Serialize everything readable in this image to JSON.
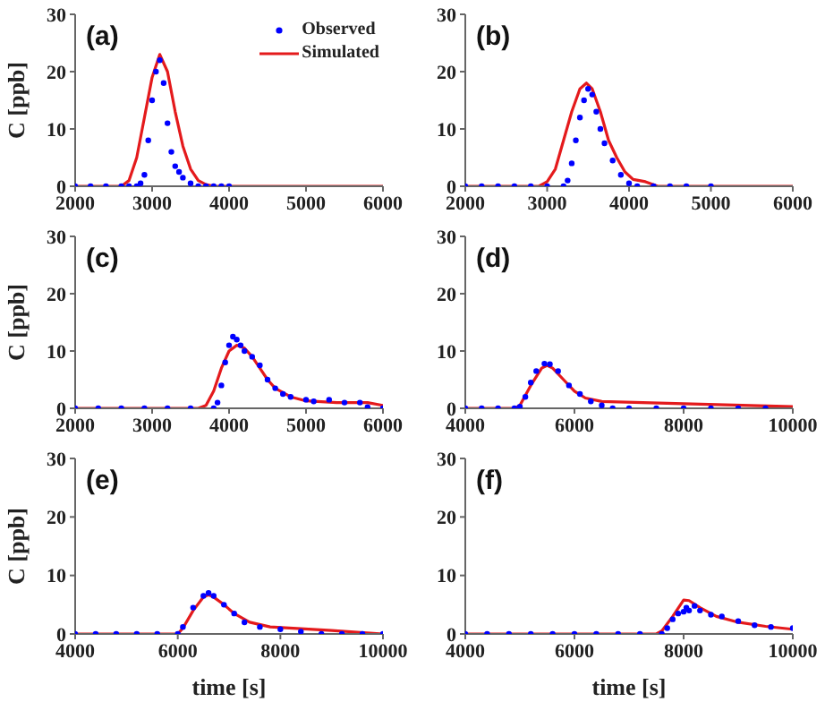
{
  "chart_data": [
    {
      "type": "line",
      "ylabel": "C [ppb]",
      "annotations": [
        "(a)"
      ],
      "xlim": [
        2000,
        6000
      ],
      "xticks": [
        2000,
        3000,
        4000,
        5000,
        6000
      ],
      "ylim": [
        0,
        30
      ],
      "yticks": [
        0,
        10,
        20,
        30
      ],
      "legend": "top right",
      "series": [
        {
          "name": "Observed",
          "type": "scatter",
          "marker": "circle",
          "color": "#0000ff",
          "x": [
            2000,
            2200,
            2400,
            2600,
            2700,
            2800,
            2850,
            2900,
            2950,
            3000,
            3050,
            3100,
            3150,
            3200,
            3250,
            3300,
            3350,
            3400,
            3500,
            3600,
            3700,
            3800,
            3900,
            4000
          ],
          "values": [
            0,
            0,
            0,
            0,
            0,
            0,
            0.5,
            2,
            8,
            15,
            20,
            22,
            18,
            11,
            6,
            3.5,
            2.5,
            1.5,
            0.5,
            0,
            0,
            0,
            0,
            0
          ]
        },
        {
          "name": "Simulated",
          "color": "#e41a1c",
          "x": [
            2000,
            2600,
            2700,
            2800,
            2900,
            3000,
            3100,
            3200,
            3300,
            3400,
            3500,
            3600,
            3700,
            3800,
            6000
          ],
          "values": [
            0,
            0,
            1,
            5,
            12,
            19,
            23,
            20,
            13,
            7,
            3,
            1,
            0.3,
            0,
            0
          ]
        }
      ]
    },
    {
      "type": "line",
      "annotations": [
        "(b)"
      ],
      "xlim": [
        2000,
        6000
      ],
      "xticks": [
        2000,
        3000,
        4000,
        5000,
        6000
      ],
      "ylim": [
        0,
        30
      ],
      "yticks": [
        0,
        10,
        20,
        30
      ],
      "series": [
        {
          "type": "scatter",
          "marker": "circle",
          "color": "#0000ff",
          "x": [
            2000,
            2200,
            2400,
            2600,
            2800,
            3000,
            3200,
            3250,
            3300,
            3350,
            3400,
            3450,
            3500,
            3550,
            3600,
            3650,
            3700,
            3800,
            3900,
            4000,
            4100,
            4300,
            4500,
            4700,
            5000
          ],
          "values": [
            0,
            0,
            0,
            0,
            0,
            0,
            0,
            1,
            4,
            8,
            12,
            15,
            17,
            16,
            13,
            10,
            7.5,
            4.5,
            2,
            0.5,
            0,
            0,
            0,
            0,
            0
          ]
        },
        {
          "color": "#e41a1c",
          "x": [
            2000,
            2900,
            3000,
            3100,
            3200,
            3300,
            3400,
            3480,
            3550,
            3650,
            3750,
            3850,
            3950,
            4050,
            4200,
            4350,
            6000
          ],
          "values": [
            0,
            0,
            0.8,
            3,
            8,
            13,
            17,
            18,
            17,
            13,
            8,
            5,
            2.5,
            1.2,
            0.8,
            0,
            0
          ]
        }
      ]
    },
    {
      "type": "line",
      "ylabel": "C [ppb]",
      "annotations": [
        "(c)"
      ],
      "xlim": [
        2000,
        6000
      ],
      "xticks": [
        2000,
        3000,
        4000,
        5000,
        6000
      ],
      "ylim": [
        0,
        30
      ],
      "yticks": [
        0,
        10,
        20,
        30
      ],
      "series": [
        {
          "type": "scatter",
          "marker": "circle",
          "color": "#0000ff",
          "x": [
            2000,
            2300,
            2600,
            2900,
            3200,
            3500,
            3800,
            3850,
            3900,
            3950,
            4000,
            4050,
            4100,
            4150,
            4200,
            4300,
            4400,
            4500,
            4600,
            4700,
            4800,
            5000,
            5100,
            5300,
            5500,
            5700,
            5800,
            6000
          ],
          "values": [
            0,
            0,
            0,
            0,
            0,
            0,
            0,
            1,
            4,
            8,
            11,
            12.5,
            12,
            11,
            10,
            9,
            7.5,
            5,
            3.5,
            2.5,
            2,
            1.5,
            1.2,
            1.5,
            1,
            1,
            0.2,
            0
          ]
        },
        {
          "color": "#e41a1c",
          "x": [
            2000,
            3600,
            3700,
            3800,
            3900,
            4000,
            4100,
            4200,
            4300,
            4400,
            4500,
            4600,
            4800,
            5000,
            5400,
            5800,
            6000
          ],
          "values": [
            0,
            0,
            0.5,
            3,
            7,
            10,
            11,
            10.5,
            9,
            7,
            5,
            3.5,
            2,
            1.3,
            1,
            1,
            0.5
          ]
        }
      ]
    },
    {
      "type": "line",
      "annotations": [
        "(d)"
      ],
      "xlim": [
        4000,
        10000
      ],
      "xticks": [
        4000,
        6000,
        8000,
        10000
      ],
      "ylim": [
        0,
        30
      ],
      "yticks": [
        0,
        10,
        20,
        30
      ],
      "series": [
        {
          "type": "scatter",
          "marker": "circle",
          "color": "#0000ff",
          "x": [
            4000,
            4300,
            4600,
            4900,
            5000,
            5100,
            5200,
            5300,
            5450,
            5550,
            5700,
            5900,
            6100,
            6300,
            6500,
            6700,
            7000,
            7500,
            8000,
            8500,
            9000,
            9500
          ],
          "values": [
            0,
            0,
            0,
            0,
            0.3,
            2,
            4.5,
            6.5,
            7.8,
            7.7,
            6.5,
            4,
            2.5,
            1.2,
            0.5,
            0,
            0,
            0,
            0,
            0,
            0,
            0
          ]
        },
        {
          "color": "#e41a1c",
          "x": [
            4000,
            4900,
            5000,
            5200,
            5400,
            5500,
            5600,
            5800,
            6000,
            6200,
            6500,
            8000,
            10000
          ],
          "values": [
            0,
            0,
            0.5,
            4,
            7,
            7.5,
            7,
            5,
            3,
            1.8,
            1.2,
            0.8,
            0.3
          ]
        }
      ]
    },
    {
      "type": "line",
      "ylabel": "C [ppb]",
      "xlabel": "time [s]",
      "annotations": [
        "(e)"
      ],
      "xlim": [
        4000,
        10000
      ],
      "xticks": [
        4000,
        6000,
        8000,
        10000
      ],
      "ylim": [
        0,
        30
      ],
      "yticks": [
        0,
        10,
        20,
        30
      ],
      "series": [
        {
          "type": "scatter",
          "marker": "circle",
          "color": "#0000ff",
          "x": [
            4000,
            4400,
            4800,
            5200,
            5600,
            6000,
            6100,
            6300,
            6500,
            6600,
            6700,
            6900,
            7100,
            7300,
            7600,
            8000,
            8400,
            8800,
            9200,
            9600,
            10000
          ],
          "values": [
            0,
            0,
            0,
            0,
            0,
            0,
            1.2,
            4.5,
            6.5,
            7,
            6.5,
            5,
            3.5,
            2,
            1.2,
            0.8,
            0.4,
            0,
            0,
            0,
            0
          ]
        },
        {
          "color": "#e41a1c",
          "x": [
            4000,
            6000,
            6100,
            6300,
            6500,
            6600,
            6700,
            6900,
            7100,
            7400,
            7800,
            8400,
            9000,
            10000
          ],
          "values": [
            0,
            0,
            1,
            4,
            6.3,
            6.7,
            6.3,
            5,
            3.5,
            2,
            1.2,
            0.9,
            0.6,
            0
          ]
        }
      ]
    },
    {
      "type": "line",
      "xlabel": "time [s]",
      "annotations": [
        "(f)"
      ],
      "xlim": [
        4000,
        10000
      ],
      "xticks": [
        4000,
        6000,
        8000,
        10000
      ],
      "ylim": [
        0,
        30
      ],
      "yticks": [
        0,
        10,
        20,
        30
      ],
      "series": [
        {
          "type": "scatter",
          "marker": "circle",
          "color": "#0000ff",
          "x": [
            4000,
            4400,
            4800,
            5200,
            5600,
            6000,
            6400,
            6800,
            7200,
            7600,
            7700,
            7800,
            7900,
            8000,
            8050,
            8100,
            8200,
            8300,
            8500,
            8700,
            9000,
            9300,
            9600,
            10000
          ],
          "values": [
            0,
            0,
            0,
            0,
            0,
            0,
            0,
            0,
            0,
            0,
            1,
            2.5,
            3.5,
            3.8,
            4.5,
            4,
            4.8,
            4,
            3.3,
            3,
            2.2,
            1.5,
            1.2,
            1
          ]
        },
        {
          "color": "#e41a1c",
          "x": [
            4000,
            7500,
            7600,
            7800,
            8000,
            8100,
            8300,
            8600,
            9000,
            9500,
            10000
          ],
          "values": [
            0,
            0,
            0.5,
            3,
            5.8,
            5.7,
            4.5,
            3,
            2,
            1.3,
            0.8
          ]
        }
      ]
    }
  ]
}
